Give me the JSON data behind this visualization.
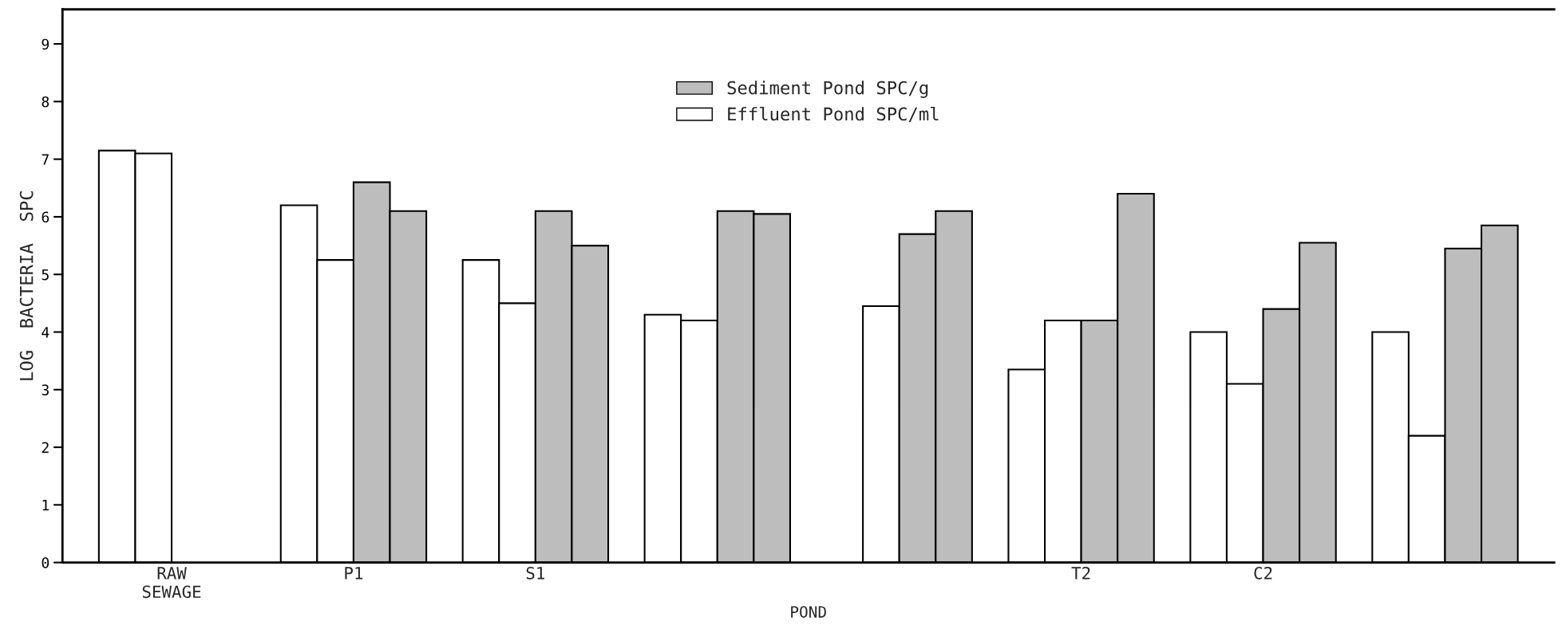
{
  "chart_data": {
    "type": "bar",
    "xlabel": "POND",
    "ylabel": "LOG  BACTERIA  SPC",
    "categories": [
      "RAW\nSEWAGE",
      "P1",
      "S1",
      null,
      null,
      "T2",
      "C2",
      null
    ],
    "series": [
      {
        "name": "Effluent Pond SPC/ml",
        "color": "#ffffff",
        "values": [
          7.15,
          6.2,
          5.25,
          4.3,
          null,
          3.35,
          4.0,
          4.0
        ]
      },
      {
        "color": "#ffffff",
        "values": [
          7.1,
          5.25,
          4.5,
          4.2,
          4.45,
          4.2,
          3.1,
          2.2
        ]
      },
      {
        "name": "Sediment Pond SPC/g",
        "color": "#bdbdbd",
        "values": [
          null,
          6.6,
          6.1,
          6.1,
          5.7,
          4.2,
          4.4,
          5.45
        ]
      },
      {
        "color": "#bdbdbd",
        "values": [
          null,
          6.1,
          5.5,
          6.05,
          6.1,
          6.4,
          5.55,
          5.85
        ]
      }
    ],
    "ylim": [
      0,
      9.6
    ],
    "yticks": [
      0,
      1,
      2,
      3,
      4,
      5,
      6,
      7,
      8,
      9
    ],
    "grid": false,
    "legend": "top"
  }
}
